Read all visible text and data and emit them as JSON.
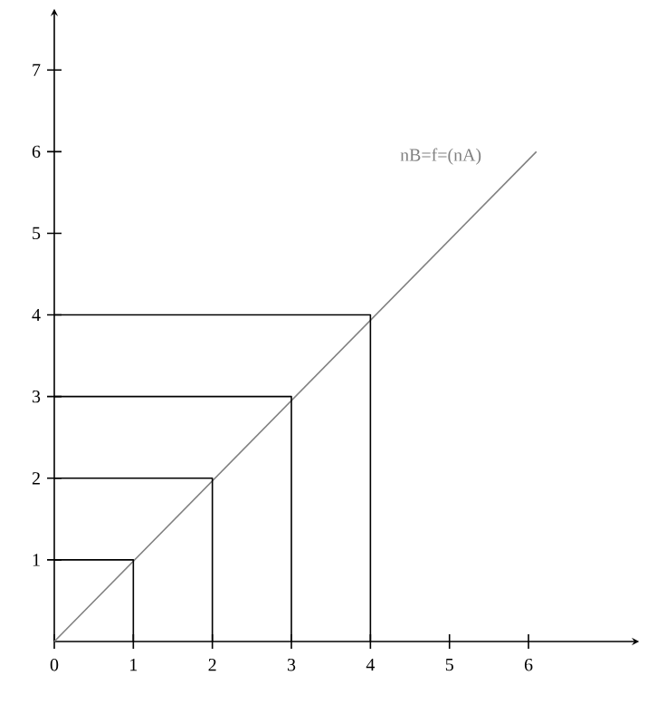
{
  "chart_data": {
    "type": "line",
    "xlim": [
      0,
      7.4
    ],
    "ylim": [
      0,
      7.75
    ],
    "xticks": [
      {
        "value": 0,
        "label": "0"
      },
      1,
      2,
      3,
      4,
      5,
      6
    ],
    "yticks": [
      1,
      2,
      3,
      4,
      5,
      6,
      7
    ],
    "grid": false,
    "marker": "none",
    "series": [
      {
        "name": "nB=f=(nA)",
        "color": "#808080",
        "x": [
          0,
          6.1
        ],
        "values": [
          0,
          6
        ]
      },
      {
        "color": "#000000",
        "x": [
          0,
          1,
          1
        ],
        "values": [
          1,
          1,
          0
        ]
      },
      {
        "color": "#000000",
        "x": [
          0,
          2,
          2
        ],
        "values": [
          2,
          2,
          0
        ]
      },
      {
        "color": "#000000",
        "x": [
          0,
          3,
          3
        ],
        "values": [
          3,
          3,
          0
        ]
      },
      {
        "color": "#000000",
        "x": [
          0,
          4,
          4
        ],
        "values": [
          4,
          4,
          0
        ]
      }
    ]
  }
}
